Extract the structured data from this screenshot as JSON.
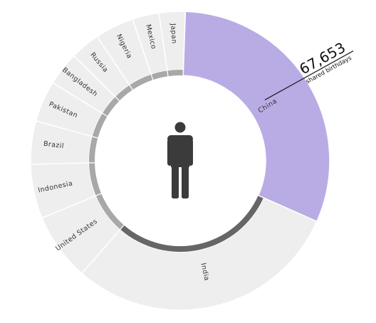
{
  "chart_data": {
    "type": "pie",
    "categories": [
      "China",
      "India",
      "United States",
      "Indonesia",
      "Brazil",
      "Pakistan",
      "Bangladesh",
      "Russia",
      "Nigeria",
      "Mexico",
      "Japan"
    ],
    "values": [
      1400,
      1340,
      330,
      265,
      210,
      200,
      165,
      145,
      190,
      130,
      127
    ],
    "highlight": "China",
    "callout": {
      "value": "67,653",
      "caption": "shared birthdays"
    },
    "center_icon": "person-icon"
  },
  "colors": {
    "highlight": "#b9ace5",
    "segment": "#eeeeee",
    "segment_stroke": "#ffffff",
    "inner_band": "#a8a8a8",
    "inner_band_dark": "#666666",
    "icon": "#3b3b3b"
  }
}
